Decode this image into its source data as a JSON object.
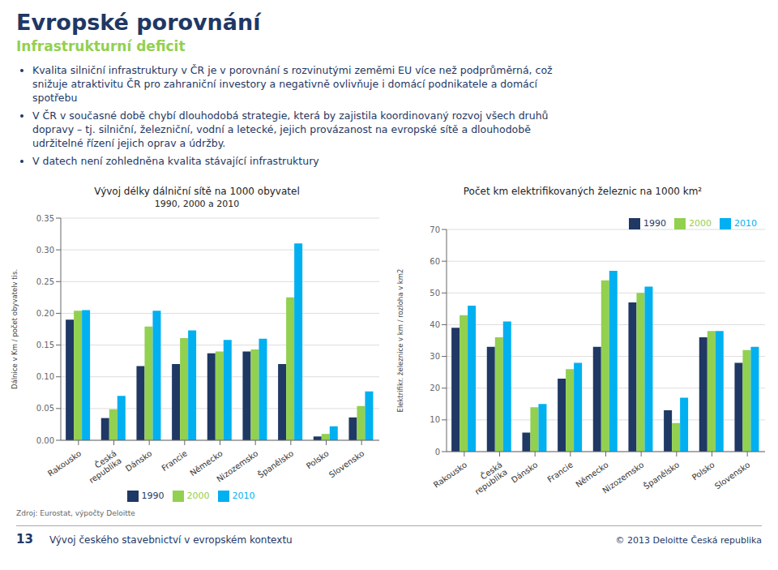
{
  "title": "Evropské porovnání",
  "subtitle": "Infrastrukturní deficit",
  "bullets": [
    [
      "Kvalita silniční infrastruktury v ČR je v porovnání s rozvinutými zeměmi EU více než podprůměrná, což",
      "snižuje atraktivitu ČR pro zahraniční investory a negativně ovlivňuje i domácí podnikatele a domácí",
      "spotřebu"
    ],
    [
      "V ČR v současné době chybí dlouhodobá strategie, která by zajistila koordinovaný rozvoj všech druhů",
      "dopravy – tj. silniční, železniční, vodní a letecké, jejich provázanost na evropské sítě a dlouhodobě",
      "udržitelné řízení jejich oprav a údržby."
    ],
    [
      "V datech není zohledněna kvalita stávající infrastruktury"
    ]
  ],
  "source": "Zdroj: Eurostat, výpočty Deloitte",
  "footer": [
    "13",
    "Vývoj českého stavebnictví v evropském kontextu",
    "© 2013 Deloitte Česká republika"
  ],
  "chart_data": [
    {
      "type": "bar",
      "title": "Vývoj délky dálniční sítě na 1000 obyvatel",
      "subtitle": "1990, 2000 a 2010",
      "ylabel": "Dálnice v Km / počet obyvatelv tis.",
      "categories": [
        "Rakousko",
        "Česká\nrepublika",
        "Dánsko",
        "Francie",
        "Německo",
        "Nizozemsko",
        "Španělsko",
        "Polsko",
        "Slovensko"
      ],
      "series": [
        {
          "name": "1990",
          "color": "#1F3864",
          "values": [
            0.19,
            0.035,
            0.117,
            0.12,
            0.137,
            0.14,
            0.12,
            0.006,
            0.036
          ]
        },
        {
          "name": "2000",
          "color": "#92D050",
          "values": [
            0.204,
            0.049,
            0.179,
            0.161,
            0.14,
            0.143,
            0.225,
            0.01,
            0.054
          ]
        },
        {
          "name": "2010",
          "color": "#00B0F0",
          "values": [
            0.205,
            0.07,
            0.204,
            0.173,
            0.158,
            0.16,
            0.31,
            0.022,
            0.077
          ]
        }
      ],
      "ylim": [
        0,
        0.35
      ],
      "yticks": [
        {
          "value": 0,
          "label": "0.00"
        },
        0.05,
        {
          "value": 0.1,
          "label": "0.10"
        },
        0.15,
        {
          "value": 0.2,
          "label": "0.20"
        },
        0.25,
        {
          "value": 0.3,
          "label": "0.30"
        },
        0.35
      ],
      "grid": true,
      "legend": "lower center"
    },
    {
      "type": "bar",
      "title": "Počet km elektrifikovaných železnic na 1000 km²",
      "ylabel": "Elektrifikr. železnice v km / rozloha v km2",
      "categories": [
        "Rakousko",
        "Česká\nrepublika",
        "Dánsko",
        "Francie",
        "Německo",
        "Nizozemsko",
        "Španělsko",
        "Polsko",
        "Slovensko"
      ],
      "series": [
        {
          "name": "1990",
          "color": "#1F3864",
          "values": [
            39,
            33,
            6,
            23,
            33,
            47,
            13,
            36,
            28
          ]
        },
        {
          "name": "2000",
          "color": "#92D050",
          "values": [
            43,
            36,
            14,
            26,
            54,
            50,
            9,
            38,
            32
          ]
        },
        {
          "name": "2010",
          "color": "#00B0F0",
          "values": [
            46,
            41,
            15,
            28,
            57,
            52,
            17,
            38,
            33
          ]
        }
      ],
      "ylim": [
        0,
        70
      ],
      "yticks": [
        0,
        10,
        20,
        30,
        40,
        50,
        60,
        70
      ],
      "grid": true,
      "legend": "upper right"
    }
  ]
}
